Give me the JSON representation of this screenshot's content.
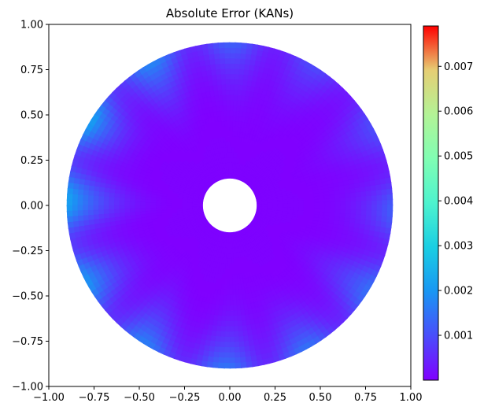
{
  "chart_data": {
    "type": "heatmap",
    "title": "Absolute Error (KANs)",
    "xlabel": "",
    "ylabel": "",
    "xlim": [
      -1.0,
      1.0
    ],
    "ylim": [
      -1.0,
      1.0
    ],
    "x_ticks": [
      "−1.00",
      "−0.75",
      "−0.50",
      "−0.25",
      "0.00",
      "0.25",
      "0.50",
      "0.75",
      "1.00"
    ],
    "y_ticks": [
      "1.00",
      "0.75",
      "0.50",
      "0.25",
      "0.00",
      "−0.25",
      "−0.50",
      "−0.75",
      "−1.00"
    ],
    "x_tick_values": [
      -1.0,
      -0.75,
      -0.5,
      -0.25,
      0.0,
      0.25,
      0.5,
      0.75,
      1.0
    ],
    "y_tick_values": [
      1.0,
      0.75,
      0.5,
      0.25,
      0.0,
      -0.25,
      -0.5,
      -0.75,
      -1.0
    ],
    "domain": {
      "shape": "annulus",
      "outer_radius": 0.9,
      "inner_radius": 0.15,
      "center": [
        0.0,
        0.0
      ]
    },
    "colorbar": {
      "colormap": "rainbow",
      "min": 0.0,
      "max": 0.0079,
      "tick_values": [
        0.001,
        0.002,
        0.003,
        0.004,
        0.005,
        0.006,
        0.007
      ],
      "tick_labels": [
        "0.001",
        "0.002",
        "0.003",
        "0.004",
        "0.005",
        "0.006",
        "0.007"
      ]
    },
    "error_summary": {
      "inner_region_error": 0.0,
      "outer_rim_max_error": 0.0021,
      "rim_error_peaks": 12
    },
    "grid": false
  }
}
